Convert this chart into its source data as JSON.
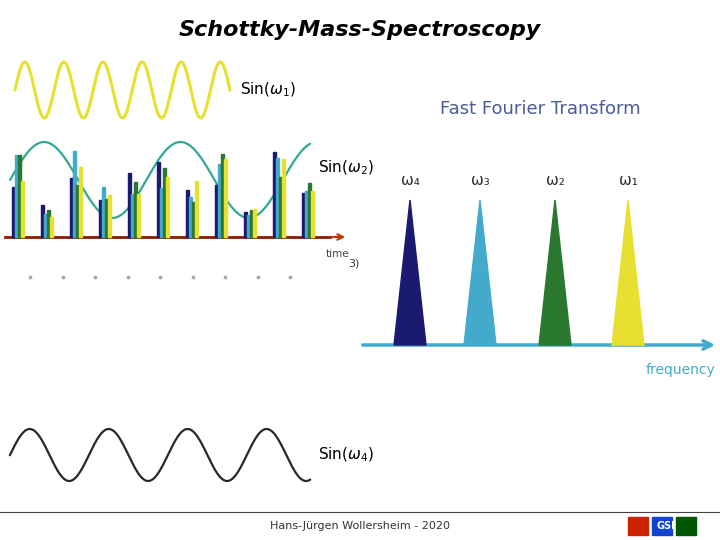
{
  "title": "Schottky-Mass-Spectroscopy",
  "title_fontsize": 16,
  "fft_title": "Fast Fourier Transform",
  "fft_title_color": "#4a5a9a",
  "fft_title_fontsize": 13,
  "freq_label": "frequency",
  "freq_label_color": "#44aacc",
  "time_label": "time",
  "footer": "Hans-Jürgen Wollersheim - 2020",
  "footer_fontsize": 8,
  "bg_color": "#ffffff",
  "sin1_color": "#e8e030",
  "sin2_color": "#30a898",
  "sin4_color": "#282828",
  "sin1_freq": 5.5,
  "sin2_freq": 2.2,
  "sin4_freq": 3.8,
  "spike_colors": [
    "#1a1a70",
    "#44aacc",
    "#2a7830",
    "#e8e030"
  ],
  "peak_labels": [
    "ω₄",
    "ω₃",
    "ω₂",
    "ω₁"
  ],
  "axis_arrow_color": "#44aacc",
  "sin_label_color": "#000000",
  "sin_label_fontsize": 11
}
